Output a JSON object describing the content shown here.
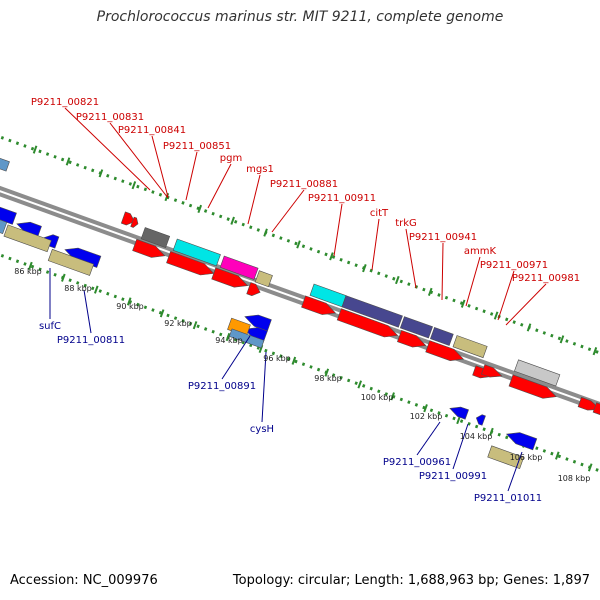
{
  "title": "Prochlorococcus marinus str. MIT 9211, complete genome",
  "footer": {
    "accession": "Accession: NC_009976",
    "stats": "Topology: circular; Length: 1,688,963 bp; Genes: 1,897"
  },
  "colors": {
    "forward_label": "#cc0000",
    "reverse_label": "#00008b",
    "backbone": "#8c8c8c",
    "tick": "#2e8b2e",
    "arrow_red": "#ff0000",
    "arrow_blue": "#0000ee",
    "gray_dark": "#666666",
    "gray_light": "#c8c8c8",
    "cyan": "#00e5e5",
    "magenta": "#ff00bb",
    "khaki": "#c8bd7d",
    "slate": "#47478f",
    "orange": "#ff9900",
    "steel": "#5f97c8"
  },
  "scale_labels": [
    "86 kbp",
    "88 kbp",
    "90 kbp",
    "92 kbp",
    "94 kbp",
    "96 kbp",
    "98 kbp",
    "100 kbp",
    "102 kbp",
    "104 kbp",
    "106 kbp",
    "108 kbp"
  ],
  "top_labels": [
    "P9211_00821",
    "P9211_00831",
    "P9211_00841",
    "P9211_00851",
    "pgm",
    "mgs1",
    "P9211_00881",
    "P9211_00911",
    "citT",
    "trkG",
    "P9211_00941",
    "ammK",
    "P9211_00971",
    "P9211_00981"
  ],
  "bottom_labels": [
    "sufC",
    "P9211_00811",
    "P9211_00891",
    "cysH",
    "P9211_00961",
    "P9211_00991",
    "P9211_01011"
  ]
}
